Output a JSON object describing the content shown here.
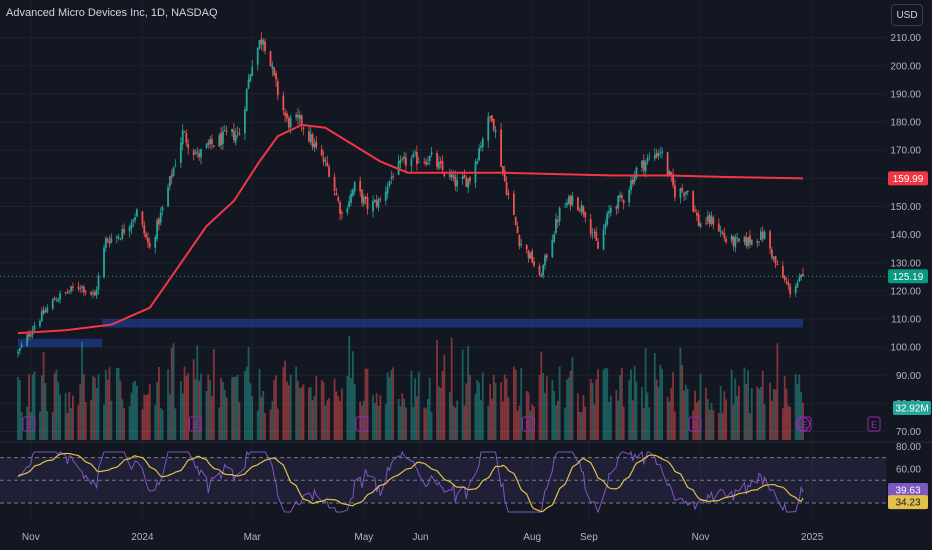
{
  "header": {
    "title": "Advanced Micro Devices Inc, 1D, NASDAQ",
    "currency_label": "USD"
  },
  "colors": {
    "background": "#131722",
    "up": "#26a69a",
    "down": "#ef5350",
    "ma_line": "#f23645",
    "rsi_line": "#7e57c2",
    "rsi_ma": "#e2c04a",
    "zone": "#2962ff",
    "grid": "#1e222d",
    "axis_text": "#b2b5be"
  },
  "chart_data": [
    {
      "type": "candlestick",
      "name": "price",
      "title": "Advanced Micro Devices Inc, 1D, NASDAQ",
      "x_tick_labels": [
        "Nov",
        "2024",
        "Mar",
        "May",
        "Jun",
        "Aug",
        "Sep",
        "Nov",
        "2025"
      ],
      "y_ticks": [
        70,
        80,
        90,
        100,
        110,
        120,
        130,
        140,
        150,
        160,
        170,
        180,
        190,
        200,
        210
      ],
      "y_tick_labels": [
        "70.00",
        "80.00",
        "90.00",
        "100.00",
        "110.00",
        "120.00",
        "130.00",
        "140.00",
        "150.00",
        "160.00",
        "170.00",
        "180.00",
        "190.00",
        "200.00",
        "210.00"
      ],
      "ylim": [
        67,
        217
      ],
      "grid": true,
      "close_path": [
        {
          "date": "2023-10-25",
          "close": 98
        },
        {
          "date": "2023-11-03",
          "close": 108
        },
        {
          "date": "2023-11-14",
          "close": 117
        },
        {
          "date": "2023-11-28",
          "close": 122
        },
        {
          "date": "2023-12-06",
          "close": 118
        },
        {
          "date": "2023-12-12",
          "close": 138
        },
        {
          "date": "2023-12-20",
          "close": 140
        },
        {
          "date": "2023-12-29",
          "close": 148
        },
        {
          "date": "2024-01-05",
          "close": 135
        },
        {
          "date": "2024-01-12",
          "close": 149
        },
        {
          "date": "2024-01-23",
          "close": 176
        },
        {
          "date": "2024-01-31",
          "close": 168
        },
        {
          "date": "2024-02-08",
          "close": 172
        },
        {
          "date": "2024-02-16",
          "close": 175
        },
        {
          "date": "2024-02-23",
          "close": 176
        },
        {
          "date": "2024-03-01",
          "close": 202
        },
        {
          "date": "2024-03-07",
          "close": 211
        },
        {
          "date": "2024-03-13",
          "close": 195
        },
        {
          "date": "2024-03-20",
          "close": 180
        },
        {
          "date": "2024-03-28",
          "close": 180
        },
        {
          "date": "2024-04-05",
          "close": 170
        },
        {
          "date": "2024-04-12",
          "close": 163
        },
        {
          "date": "2024-04-19",
          "close": 147
        },
        {
          "date": "2024-04-26",
          "close": 157
        },
        {
          "date": "2024-05-03",
          "close": 150
        },
        {
          "date": "2024-05-10",
          "close": 152
        },
        {
          "date": "2024-05-17",
          "close": 162
        },
        {
          "date": "2024-05-24",
          "close": 166
        },
        {
          "date": "2024-05-31",
          "close": 167
        },
        {
          "date": "2024-06-07",
          "close": 167
        },
        {
          "date": "2024-06-14",
          "close": 162
        },
        {
          "date": "2024-06-21",
          "close": 158
        },
        {
          "date": "2024-06-28",
          "close": 160
        },
        {
          "date": "2024-07-05",
          "close": 175
        },
        {
          "date": "2024-07-10",
          "close": 183
        },
        {
          "date": "2024-07-17",
          "close": 159
        },
        {
          "date": "2024-07-25",
          "close": 138
        },
        {
          "date": "2024-08-01",
          "close": 131
        },
        {
          "date": "2024-08-05",
          "close": 124
        },
        {
          "date": "2024-08-09",
          "close": 133
        },
        {
          "date": "2024-08-16",
          "close": 148
        },
        {
          "date": "2024-08-23",
          "close": 153
        },
        {
          "date": "2024-08-30",
          "close": 148
        },
        {
          "date": "2024-09-06",
          "close": 135
        },
        {
          "date": "2024-09-13",
          "close": 150
        },
        {
          "date": "2024-09-20",
          "close": 153
        },
        {
          "date": "2024-09-27",
          "close": 163
        },
        {
          "date": "2024-10-04",
          "close": 167
        },
        {
          "date": "2024-10-10",
          "close": 170
        },
        {
          "date": "2024-10-18",
          "close": 155
        },
        {
          "date": "2024-10-25",
          "close": 156
        },
        {
          "date": "2024-10-31",
          "close": 144
        },
        {
          "date": "2024-11-08",
          "close": 145
        },
        {
          "date": "2024-11-15",
          "close": 138
        },
        {
          "date": "2024-11-22",
          "close": 137
        },
        {
          "date": "2024-11-29",
          "close": 138
        },
        {
          "date": "2024-12-06",
          "close": 140
        },
        {
          "date": "2024-12-13",
          "close": 128
        },
        {
          "date": "2024-12-20",
          "close": 120
        },
        {
          "date": "2024-12-27",
          "close": 125.19
        }
      ],
      "moving_average": {
        "color": "#f23645",
        "last_value": 159.99,
        "last_label": "159.99",
        "points": [
          {
            "date": "2023-10-25",
            "value": 105
          },
          {
            "date": "2023-11-20",
            "value": 106
          },
          {
            "date": "2023-12-15",
            "value": 108
          },
          {
            "date": "2024-01-05",
            "value": 114
          },
          {
            "date": "2024-01-20",
            "value": 128
          },
          {
            "date": "2024-02-05",
            "value": 143
          },
          {
            "date": "2024-02-20",
            "value": 152
          },
          {
            "date": "2024-03-05",
            "value": 166
          },
          {
            "date": "2024-03-15",
            "value": 175
          },
          {
            "date": "2024-03-28",
            "value": 179
          },
          {
            "date": "2024-04-10",
            "value": 178
          },
          {
            "date": "2024-04-25",
            "value": 172
          },
          {
            "date": "2024-05-10",
            "value": 166
          },
          {
            "date": "2024-05-25",
            "value": 162
          },
          {
            "date": "2024-06-15",
            "value": 162
          },
          {
            "date": "2024-07-15",
            "value": 162
          },
          {
            "date": "2024-08-15",
            "value": 161.5
          },
          {
            "date": "2024-09-15",
            "value": 161
          },
          {
            "date": "2024-10-15",
            "value": 161
          },
          {
            "date": "2024-11-15",
            "value": 160.5
          },
          {
            "date": "2024-12-27",
            "value": 159.99
          }
        ]
      },
      "last_price": 125.19,
      "last_price_label": "125.19",
      "zones": [
        {
          "start": "2023-10-25",
          "end": "2023-12-10",
          "low": 100,
          "high": 103
        },
        {
          "start": "2023-12-10",
          "end": "2024-12-27",
          "low": 107,
          "high": 110
        }
      ],
      "event_markers": [
        {
          "date": "2023-10-31",
          "label": "E"
        },
        {
          "date": "2024-01-30",
          "label": "E"
        },
        {
          "date": "2024-04-30",
          "label": "E"
        },
        {
          "date": "2024-07-30",
          "label": "E"
        },
        {
          "date": "2024-10-29",
          "label": "E"
        },
        {
          "date": "2024-12-28",
          "label": "E"
        }
      ],
      "lightning_marker": {
        "date": "2024-12-27"
      }
    },
    {
      "type": "bar",
      "name": "volume",
      "last_value_label": "32.92M",
      "ylim": [
        0,
        100
      ]
    },
    {
      "type": "line",
      "name": "rsi",
      "y_ticks": [
        60,
        80
      ],
      "y_tick_labels": [
        "60.00",
        "80.00"
      ],
      "ylim": [
        15,
        82
      ],
      "band": [
        30,
        70
      ],
      "mid": 50,
      "last_value": 39.63,
      "last_label": "39.63",
      "ma_last_value": 34.23,
      "ma_label": "34.23"
    }
  ]
}
